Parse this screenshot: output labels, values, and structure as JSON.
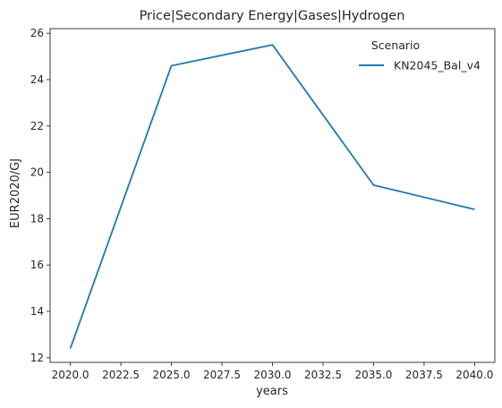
{
  "chart_data": {
    "type": "line",
    "title": "Price|Secondary Energy|Gases|Hydrogen",
    "xlabel": "years",
    "ylabel": "EUR2020/GJ",
    "x": [
      2020,
      2025,
      2030,
      2035,
      2040
    ],
    "series": [
      {
        "name": "KN2045_Bal_v4",
        "color": "#1f77b4",
        "values": [
          12.4,
          24.6,
          25.5,
          19.45,
          18.4
        ]
      }
    ],
    "xlim": [
      2019.0,
      2041.0
    ],
    "ylim": [
      11.8,
      26.2
    ],
    "xticks": [
      2020.0,
      2022.5,
      2025.0,
      2027.5,
      2030.0,
      2032.5,
      2035.0,
      2037.5,
      2040.0
    ],
    "xtick_labels": [
      "2020.0",
      "2022.5",
      "2025.0",
      "2027.5",
      "2030.0",
      "2032.5",
      "2035.0",
      "2037.5",
      "2040.0"
    ],
    "yticks": [
      12,
      14,
      16,
      18,
      20,
      22,
      24,
      26
    ],
    "ytick_labels": [
      "12",
      "14",
      "16",
      "18",
      "20",
      "22",
      "24",
      "26"
    ],
    "legend": {
      "title": "Scenario",
      "placement": "top-right"
    },
    "grid": false
  }
}
